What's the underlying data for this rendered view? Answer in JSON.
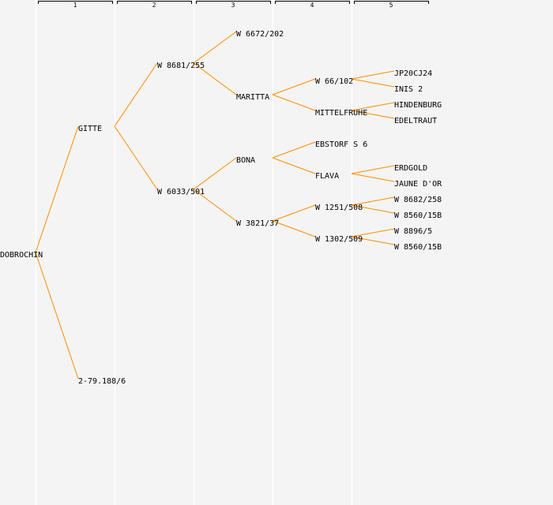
{
  "columns": [
    "1",
    "2",
    "3",
    "4",
    "5"
  ],
  "colors": {
    "edge": "#ff8c00",
    "background": "#f4f4f4",
    "separator": "#ffffff"
  },
  "nodes": [
    {
      "name": "DOBROCHIN",
      "gen": 0,
      "parent": null
    },
    {
      "name": "GITTE",
      "gen": 1,
      "parent": 0
    },
    {
      "name": "2-79.188/6",
      "gen": 1,
      "parent": 0
    },
    {
      "name": "W 8681/255",
      "gen": 2,
      "parent": 1
    },
    {
      "name": "W 6033/501",
      "gen": 2,
      "parent": 1
    },
    {
      "name": "W 6672/202",
      "gen": 3,
      "parent": 3
    },
    {
      "name": "MARITTA",
      "gen": 3,
      "parent": 3
    },
    {
      "name": "BONA",
      "gen": 3,
      "parent": 4
    },
    {
      "name": "W 3821/37",
      "gen": 3,
      "parent": 4
    },
    {
      "name": "W 66/102",
      "gen": 4,
      "parent": 6
    },
    {
      "name": "MITTELFRUHE",
      "gen": 4,
      "parent": 6
    },
    {
      "name": "EBSTORF S 6",
      "gen": 4,
      "parent": 7
    },
    {
      "name": "FLAVA",
      "gen": 4,
      "parent": 7
    },
    {
      "name": "W 1251/508",
      "gen": 4,
      "parent": 8
    },
    {
      "name": "W 1302/509",
      "gen": 4,
      "parent": 8
    },
    {
      "name": "JP20CJ24",
      "gen": 5,
      "parent": 9
    },
    {
      "name": "INIS 2",
      "gen": 5,
      "parent": 9
    },
    {
      "name": "HINDENBURG",
      "gen": 5,
      "parent": 10
    },
    {
      "name": "EDELTRAUT",
      "gen": 5,
      "parent": 10
    },
    {
      "name": "ERDGOLD",
      "gen": 5,
      "parent": 12
    },
    {
      "name": "JAUNE D'OR",
      "gen": 5,
      "parent": 12
    },
    {
      "name": "W 8682/258",
      "gen": 5,
      "parent": 13
    },
    {
      "name": "W 8560/15B",
      "gen": 5,
      "parent": 13
    },
    {
      "name": "W 8896/5",
      "gen": 5,
      "parent": 14
    },
    {
      "name": "W 8560/15B",
      "gen": 5,
      "parent": 14
    }
  ]
}
